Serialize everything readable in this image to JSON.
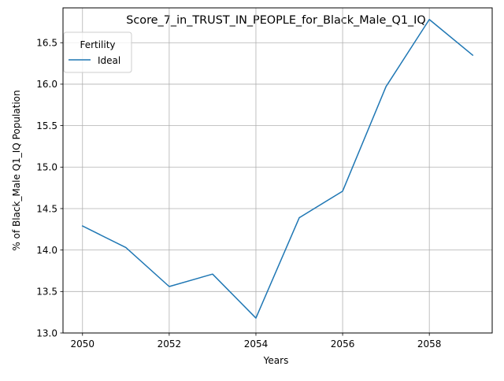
{
  "chart_data": {
    "type": "line",
    "title": "Score_7_in_TRUST_IN_PEOPLE_for_Black_Male_Q1_IQ",
    "xlabel": "Years",
    "ylabel": "% of Black_Male Q1_IQ Population",
    "x": [
      2050,
      2051,
      2052,
      2053,
      2054,
      2055,
      2056,
      2057,
      2058,
      2059
    ],
    "xlim": [
      2049.55,
      2059.45
    ],
    "ylim": [
      13.0,
      16.92
    ],
    "x_ticks": [
      2050,
      2052,
      2054,
      2056,
      2058
    ],
    "x_tick_labels": [
      "2050",
      "2052",
      "2054",
      "2056",
      "2058"
    ],
    "y_ticks": [
      13.0,
      13.5,
      14.0,
      14.5,
      15.0,
      15.5,
      16.0,
      16.5
    ],
    "y_tick_labels": [
      "13.0",
      "13.5",
      "14.0",
      "14.5",
      "15.0",
      "15.5",
      "16.0",
      "16.5"
    ],
    "grid": true,
    "legend": {
      "title": "Fertility",
      "placement": "top-left"
    },
    "series": [
      {
        "name": "Ideal",
        "color": "#1f77b4",
        "values": [
          14.29,
          14.03,
          13.56,
          13.71,
          13.18,
          14.39,
          14.71,
          15.97,
          16.78,
          16.35
        ]
      }
    ]
  }
}
